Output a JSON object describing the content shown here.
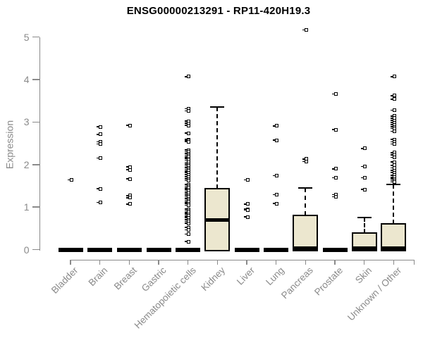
{
  "chart_data": {
    "type": "boxplot",
    "title": "ENSG00000213291 - RP11-420H19.3",
    "xlabel": "",
    "ylabel": "Expression",
    "ylim": [
      0,
      5
    ],
    "yticks": [
      0,
      1,
      2,
      3,
      4,
      5
    ],
    "grid": false,
    "legend": "none",
    "categories": [
      "Bladder",
      "Brain",
      "Breast",
      "Gastric",
      "Hematopoietic cells",
      "Kidney",
      "Liver",
      "Lung",
      "Pancreas",
      "Prostate",
      "Skin",
      "Unknown / Other"
    ],
    "series": [
      {
        "name": "Bladder",
        "q1": 0,
        "median": 0,
        "q3": 0,
        "whisker_low": 0,
        "whisker_high": 0,
        "collapsed": true,
        "outliers": [
          1.64
        ]
      },
      {
        "name": "Brain",
        "q1": 0,
        "median": 0,
        "q3": 0,
        "whisker_low": 0,
        "whisker_high": 0,
        "collapsed": true,
        "outliers": [
          2.89,
          2.71,
          2.53,
          2.48,
          2.15,
          1.43,
          1.11
        ]
      },
      {
        "name": "Breast",
        "q1": 0,
        "median": 0,
        "q3": 0,
        "whisker_low": 0,
        "whisker_high": 0,
        "collapsed": true,
        "outliers": [
          2.92,
          1.94,
          1.88,
          1.66,
          1.27,
          1.22,
          1.07
        ]
      },
      {
        "name": "Gastric",
        "q1": 0,
        "median": 0,
        "q3": 0,
        "whisker_low": 0,
        "whisker_high": 0,
        "collapsed": true,
        "outliers": []
      },
      {
        "name": "Hematopoietic cells",
        "q1": 0,
        "median": 0,
        "q3": 0,
        "whisker_low": 0,
        "whisker_high": 0,
        "collapsed": true,
        "outliers": [
          4.07,
          3.31,
          3.26,
          3.02,
          2.97,
          2.92,
          2.74,
          2.59,
          2.56,
          2.53,
          2.34,
          2.3,
          2.26,
          2.22,
          2.18,
          2.14,
          2.1,
          2.05,
          2.01,
          1.97,
          1.93,
          1.89,
          1.85,
          1.81,
          1.76,
          1.71,
          1.66,
          1.62,
          1.53,
          1.49,
          1.45,
          1.41,
          1.37,
          1.33,
          1.28,
          1.24,
          1.2,
          1.16,
          1.12,
          1.08,
          1.04,
          0.95,
          0.91,
          0.87,
          0.83,
          0.79,
          0.75,
          0.7,
          0.66,
          0.62,
          0.52,
          0.46,
          0.36,
          0.19
        ]
      },
      {
        "name": "Kidney",
        "q1": 0,
        "median": 0.7,
        "q3": 1.44,
        "whisker_low": 0,
        "whisker_high": 3.36,
        "collapsed": false,
        "outliers": []
      },
      {
        "name": "Liver",
        "q1": 0,
        "median": 0,
        "q3": 0,
        "whisker_low": 0,
        "whisker_high": 0,
        "collapsed": true,
        "outliers": [
          1.64,
          1.07,
          0.95,
          0.93,
          0.77
        ]
      },
      {
        "name": "Lung",
        "q1": 0,
        "median": 0,
        "q3": 0,
        "whisker_low": 0,
        "whisker_high": 0,
        "collapsed": true,
        "outliers": [
          2.91,
          2.57,
          1.74,
          1.29,
          1.08
        ]
      },
      {
        "name": "Pancreas",
        "q1": 0,
        "median": 0.03,
        "q3": 0.8,
        "whisker_low": 0,
        "whisker_high": 1.45,
        "collapsed": false,
        "outliers": [
          5.17,
          2.13,
          2.07
        ]
      },
      {
        "name": "Prostate",
        "q1": 0,
        "median": 0,
        "q3": 0,
        "whisker_low": 0,
        "whisker_high": 0,
        "collapsed": true,
        "outliers": [
          3.66,
          2.82,
          1.9,
          1.69,
          1.29,
          1.24
        ]
      },
      {
        "name": "Skin",
        "q1": 0,
        "median": 0.03,
        "q3": 0.39,
        "whisker_low": 0,
        "whisker_high": 0.75,
        "collapsed": false,
        "outliers": [
          2.38,
          1.95,
          1.69,
          1.41
        ]
      },
      {
        "name": "Unknown / Other",
        "q1": 0,
        "median": 0.03,
        "q3": 0.6,
        "whisker_low": 0,
        "whisker_high": 1.53,
        "collapsed": false,
        "outliers": [
          4.07,
          3.62,
          3.54,
          3.28,
          3.14,
          3.09,
          3.04,
          2.99,
          2.94,
          2.89,
          2.85,
          2.78,
          2.59,
          2.53,
          2.48,
          2.28,
          2.23,
          2.17,
          2.06,
          1.98,
          1.92,
          1.86,
          1.81,
          1.75,
          1.7,
          1.66,
          1.62,
          1.59
        ]
      }
    ],
    "colors": {
      "box_fill": "#ECE7CF",
      "box_stroke": "#000000",
      "axis": "#8A8A8A",
      "tick_text": "#8A8A8A",
      "title_text": "#000000",
      "background": "#FFFFFF"
    }
  }
}
